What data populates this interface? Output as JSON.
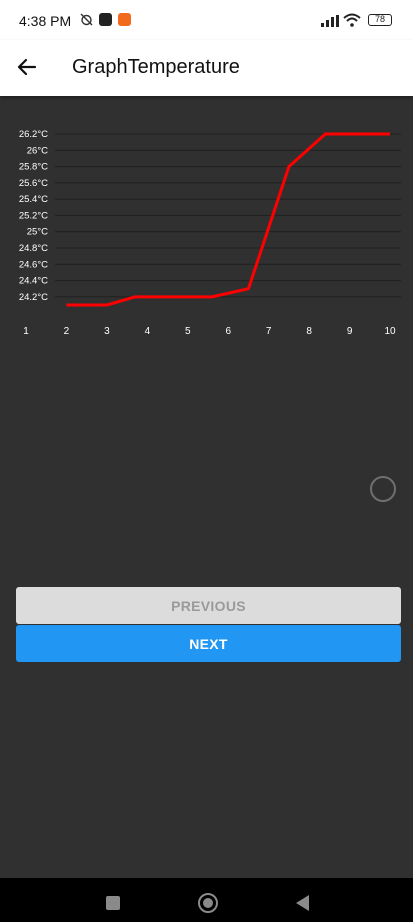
{
  "status_bar": {
    "time": "4:38 PM",
    "battery": "78"
  },
  "app_bar": {
    "title": "GraphTemperature"
  },
  "chart_data": {
    "type": "line",
    "x": [
      1,
      2,
      3,
      4,
      5,
      6,
      7,
      8,
      9,
      10
    ],
    "y_tick_labels": [
      "26.2°C",
      "26°C",
      "25.8°C",
      "25.6°C",
      "25.4°C",
      "25.2°C",
      "25°C",
      "24.8°C",
      "24.6°C",
      "24.4°C",
      "24.2°C"
    ],
    "y_ticks": [
      26.2,
      26.0,
      25.8,
      25.6,
      25.4,
      25.2,
      25.0,
      24.8,
      24.6,
      24.4,
      24.2
    ],
    "x_tick_labels": [
      "1",
      "2",
      "3",
      "4",
      "5",
      "6",
      "7",
      "8",
      "9",
      "10"
    ],
    "series": [
      {
        "points": [
          [
            2,
            24.1
          ],
          [
            3,
            24.1
          ],
          [
            3.7,
            24.2
          ],
          [
            5,
            24.2
          ],
          [
            5.6,
            24.2
          ],
          [
            6.5,
            24.3
          ],
          [
            7.5,
            25.8
          ],
          [
            8.4,
            26.2
          ],
          [
            10,
            26.2
          ]
        ],
        "color": "#ff0000"
      }
    ],
    "ylim": [
      24.1,
      26.2
    ],
    "grid": true
  },
  "buttons": {
    "previous": "PREVIOUS",
    "next": "NEXT"
  },
  "colors": {
    "accent": "#2196f3",
    "line": "#ff0000",
    "background": "#303030"
  }
}
